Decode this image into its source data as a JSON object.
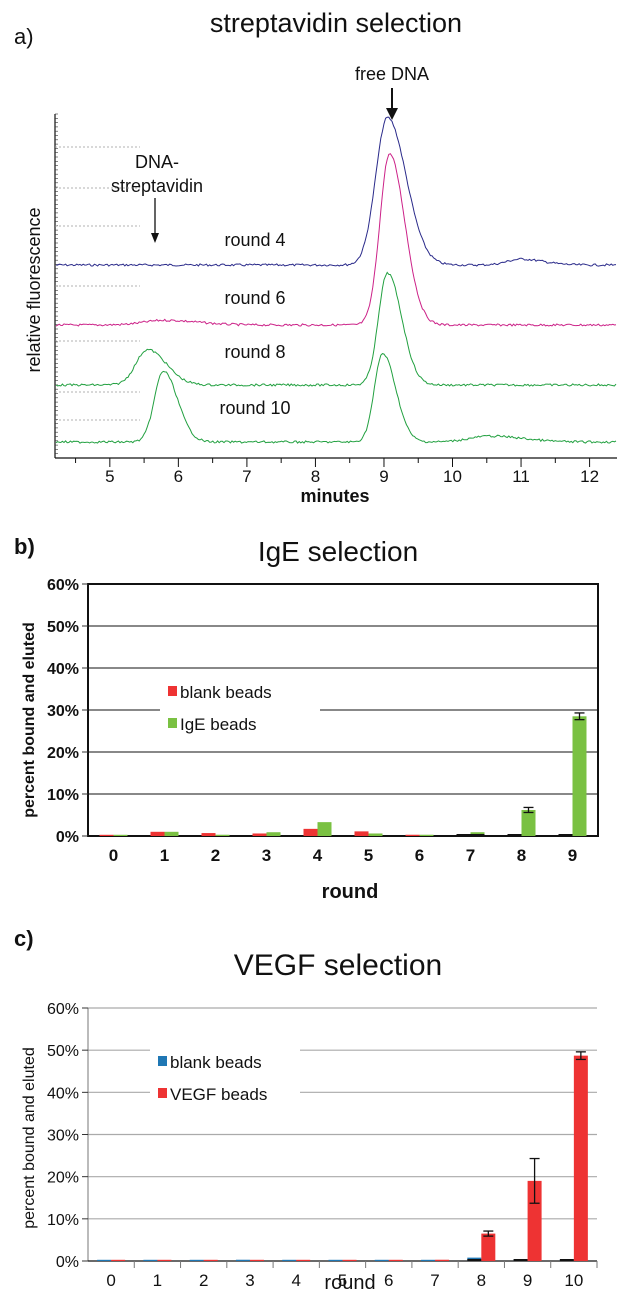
{
  "panel_a": {
    "letter": "a)",
    "chart_data": {
      "type": "line",
      "title": "streptavidin selection",
      "xlabel": "minutes",
      "ylabel": "relative fluorescence",
      "xlim": [
        4.2,
        12.4
      ],
      "x_ticks": [
        "5",
        "6",
        "7",
        "8",
        "9",
        "10",
        "11",
        "12"
      ],
      "annotations": {
        "free_dna": "free DNA",
        "complex_line1": "DNA-",
        "complex_line2": "streptavidin"
      },
      "series": [
        {
          "label": "round 4",
          "color": "#2a2a8a",
          "baseline_level": 3,
          "peaks": [
            {
              "x": 9.05,
              "height": 1.25,
              "width": 0.17
            },
            {
              "x": 11.0,
              "height": 0.05,
              "width": 0.2
            }
          ]
        },
        {
          "label": "round 6",
          "color": "#cc2288",
          "baseline_level": 2,
          "peaks": [
            {
              "x": 9.08,
              "height": 1.45,
              "width": 0.14
            },
            {
              "x": 5.8,
              "height": 0.04,
              "width": 0.3
            }
          ]
        },
        {
          "label": "round 8",
          "color": "#22a040",
          "baseline_level": 1,
          "peaks": [
            {
              "x": 9.05,
              "height": 0.95,
              "width": 0.13
            },
            {
              "x": 5.55,
              "height": 0.3,
              "width": 0.17
            }
          ]
        },
        {
          "label": "round 10",
          "color": "#22a040",
          "baseline_level": 0,
          "peaks": [
            {
              "x": 8.98,
              "height": 0.75,
              "width": 0.12
            },
            {
              "x": 5.78,
              "height": 0.6,
              "width": 0.13
            },
            {
              "x": 10.55,
              "height": 0.05,
              "width": 0.3
            }
          ]
        }
      ]
    }
  },
  "panel_b": {
    "letter": "b)",
    "chart_data": {
      "type": "bar",
      "title": "IgE selection",
      "xlabel": "round",
      "ylabel": "percent bound and eluted",
      "ylim": [
        0,
        60
      ],
      "y_ticks": [
        "0%",
        "10%",
        "20%",
        "30%",
        "40%",
        "50%",
        "60%"
      ],
      "categories": [
        "0",
        "1",
        "2",
        "3",
        "4",
        "5",
        "6",
        "7",
        "8",
        "9"
      ],
      "series": [
        {
          "name": "blank beads",
          "color": "#ee3333",
          "values": [
            0.2,
            1.0,
            0.7,
            0.6,
            1.7,
            1.1,
            0.3,
            0.4,
            0.4,
            0.4
          ]
        },
        {
          "name": "IgE beads",
          "color": "#7ac142",
          "values": [
            0.2,
            1.0,
            0.3,
            0.9,
            3.3,
            0.6,
            0.3,
            0.9,
            6.2,
            28.5
          ]
        }
      ],
      "errors": {
        "IgE beads": [
          0,
          0,
          0,
          0,
          0,
          0,
          0,
          0,
          0.6,
          0.8
        ]
      }
    }
  },
  "panel_c": {
    "letter": "c)",
    "chart_data": {
      "type": "bar",
      "title": "VEGF selection",
      "xlabel": "round",
      "ylabel": "percent bound and eluted",
      "ylim": [
        0,
        60
      ],
      "y_ticks": [
        "0%",
        "10%",
        "20%",
        "30%",
        "40%",
        "50%",
        "60%"
      ],
      "categories": [
        "0",
        "1",
        "2",
        "3",
        "4",
        "5",
        "6",
        "7",
        "8",
        "9",
        "10"
      ],
      "series": [
        {
          "name": "blank beads",
          "color": "#1f77b4",
          "values": [
            0.2,
            0.1,
            0.1,
            0.3,
            0.1,
            0.1,
            0.2,
            0.1,
            0.8,
            0.4,
            0.3
          ]
        },
        {
          "name": "VEGF beads",
          "color": "#ee3333",
          "values": [
            0.2,
            0.1,
            0.1,
            0.2,
            0.1,
            0.1,
            0.2,
            0.3,
            6.5,
            19.0,
            48.7
          ]
        }
      ],
      "errors": {
        "VEGF beads": [
          0,
          0,
          0,
          0,
          0,
          0,
          0,
          0,
          0.6,
          5.3,
          0.9
        ]
      }
    }
  }
}
